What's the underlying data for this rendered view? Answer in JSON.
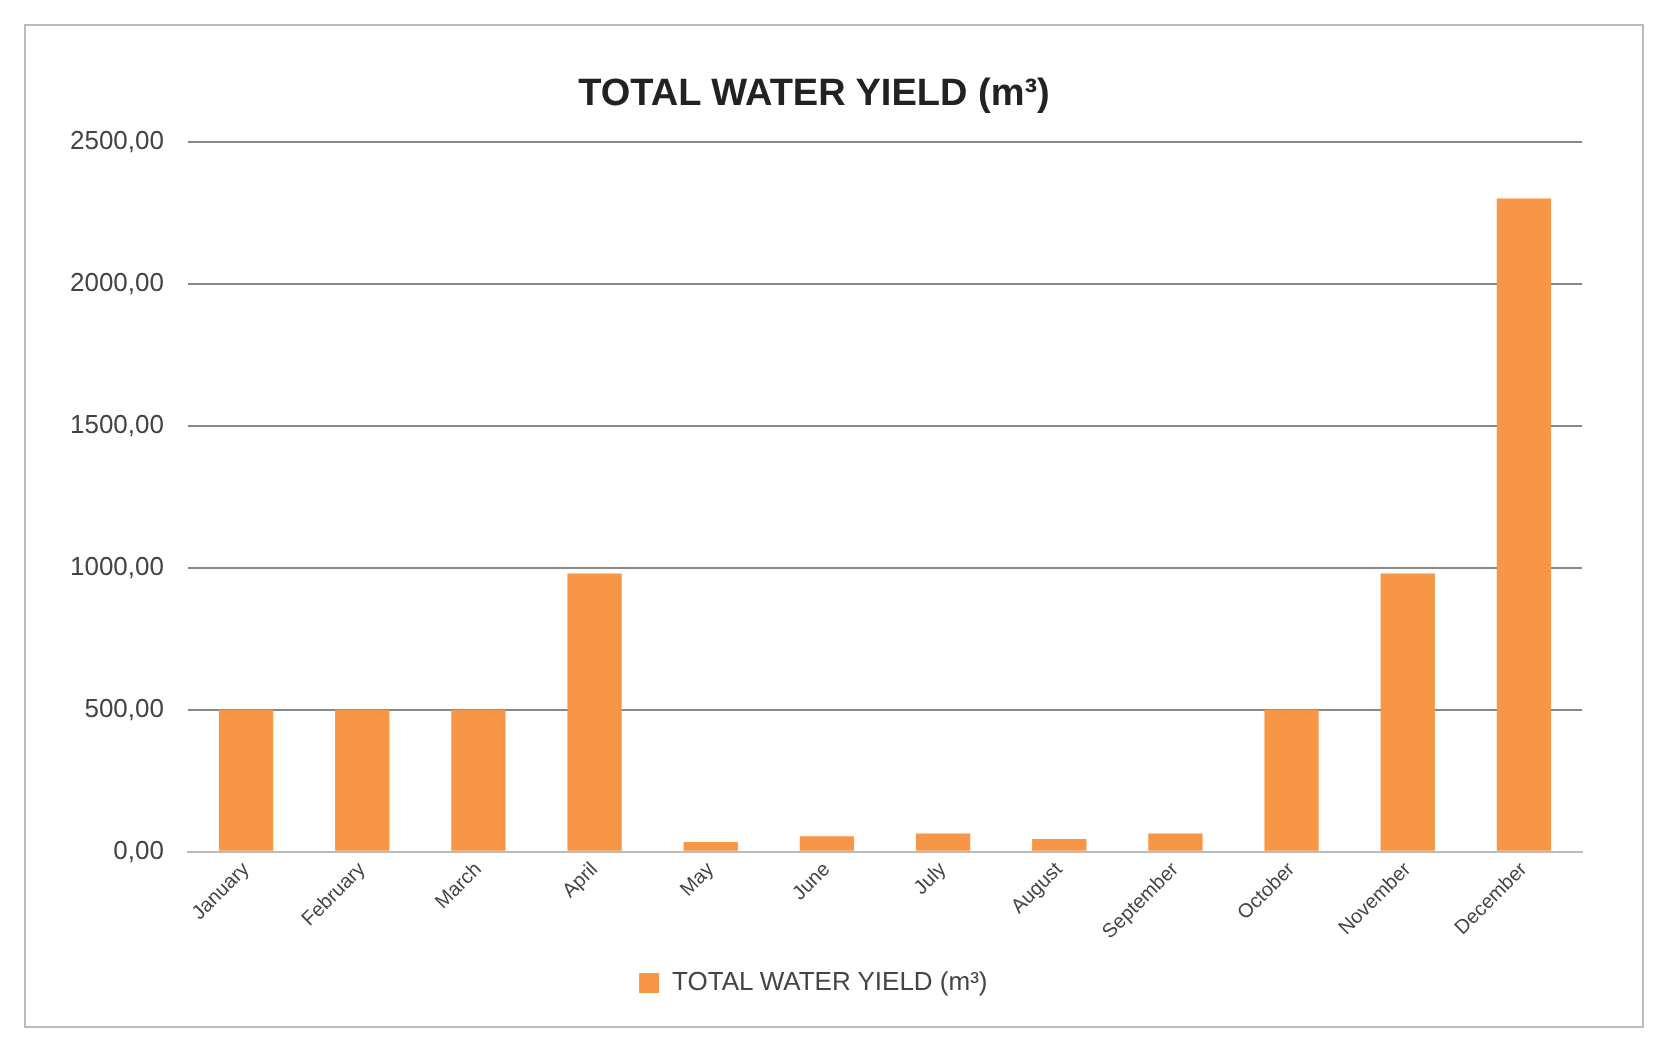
{
  "chart_data": {
    "type": "bar",
    "title": "TOTAL WATER YIELD (m³)",
    "categories": [
      "January",
      "February",
      "March",
      "April",
      "May",
      "June",
      "July",
      "August",
      "September",
      "October",
      "November",
      "December"
    ],
    "series": [
      {
        "name": "TOTAL WATER YIELD (m³)",
        "color": "#f79646",
        "values": [
          500,
          500,
          500,
          980,
          35,
          55,
          65,
          45,
          65,
          500,
          980,
          2300
        ]
      }
    ],
    "ylim": [
      0,
      2500
    ],
    "yticks": [
      {
        "value": 0,
        "label": "0,00"
      },
      {
        "value": 500,
        "label": "500,00"
      },
      {
        "value": 1000,
        "label": "1000,00"
      },
      {
        "value": 1500,
        "label": "1500,00"
      },
      {
        "value": 2000,
        "label": "2000,00"
      },
      {
        "value": 2500,
        "label": "2500,00"
      }
    ],
    "grid": "y",
    "legend": "bottom"
  }
}
